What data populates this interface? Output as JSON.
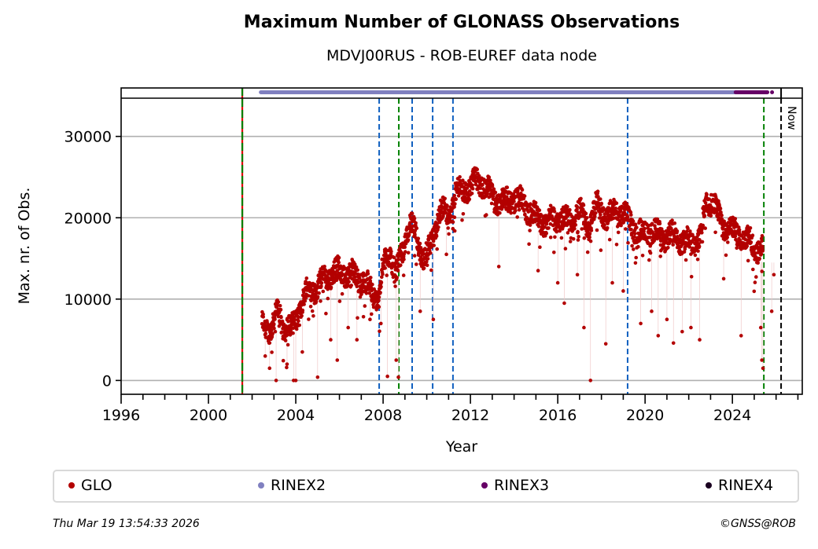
{
  "header": {
    "title": "Maximum Number of GLONASS Observations",
    "subtitle": "MDVJ00RUS - ROB-EUREF data node"
  },
  "footer": {
    "timestamp": "Thu Mar 19 13:54:33 2026",
    "copyright": "©GNSS@ROB"
  },
  "chart_data": {
    "type": "scatter",
    "title": "Maximum Number of GLONASS Observations",
    "subtitle": "MDVJ00RUS - ROB-EUREF data node",
    "xlabel": "Year",
    "ylabel": "Max. nr. of Obs.",
    "xlim": [
      1996,
      2027.2
    ],
    "ylim": [
      -1700,
      34700
    ],
    "xticks": [
      1996,
      2000,
      2004,
      2008,
      2012,
      2016,
      2020,
      2024
    ],
    "xtick_labels": [
      "1996",
      "2000",
      "2004",
      "2008",
      "2012",
      "2016",
      "2020",
      "2024"
    ],
    "yticks": [
      0,
      10000,
      20000,
      30000
    ],
    "ytick_labels": [
      "0",
      "10000",
      "20000",
      "30000"
    ],
    "grid": "horizontal",
    "legend_position": "bottom",
    "legend": [
      {
        "label": "GLO",
        "color": "#b30000"
      },
      {
        "label": "RINEX2",
        "color": "#8080c0"
      },
      {
        "label": "RINEX3",
        "color": "#660066"
      },
      {
        "label": "RINEX4",
        "color": "#1a0020"
      }
    ],
    "series": [
      {
        "name": "GLO",
        "color": "#b30000",
        "trend": [
          [
            2002.45,
            6800
          ],
          [
            2002.9,
            6500
          ],
          [
            2003.2,
            8500
          ],
          [
            2003.4,
            7000
          ],
          [
            2003.8,
            6200
          ],
          [
            2004.2,
            9000
          ],
          [
            2004.5,
            11000
          ],
          [
            2005.0,
            11500
          ],
          [
            2005.5,
            13000
          ],
          [
            2006.0,
            13500
          ],
          [
            2006.5,
            13000
          ],
          [
            2007.0,
            12500
          ],
          [
            2007.5,
            11000
          ],
          [
            2007.8,
            10000
          ],
          [
            2008.0,
            14000
          ],
          [
            2008.3,
            16000
          ],
          [
            2008.6,
            13000
          ],
          [
            2008.9,
            16000
          ],
          [
            2009.2,
            19500
          ],
          [
            2009.6,
            17000
          ],
          [
            2009.9,
            15000
          ],
          [
            2010.2,
            16500
          ],
          [
            2010.6,
            21000
          ],
          [
            2011.0,
            20000
          ],
          [
            2011.3,
            23000
          ],
          [
            2012.0,
            24000
          ],
          [
            2012.5,
            24500
          ],
          [
            2013.0,
            22500
          ],
          [
            2013.5,
            22000
          ],
          [
            2014.0,
            22500
          ],
          [
            2014.5,
            21500
          ],
          [
            2015.0,
            20000
          ],
          [
            2015.5,
            19500
          ],
          [
            2016.0,
            20000
          ],
          [
            2016.5,
            19500
          ],
          [
            2017.0,
            21000
          ],
          [
            2017.4,
            19000
          ],
          [
            2017.8,
            21500
          ],
          [
            2018.3,
            20000
          ],
          [
            2018.8,
            21000
          ],
          [
            2019.3,
            19500
          ],
          [
            2019.8,
            18000
          ],
          [
            2020.3,
            18500
          ],
          [
            2020.8,
            17500
          ],
          [
            2021.2,
            18000
          ],
          [
            2021.6,
            17500
          ],
          [
            2022.0,
            17000
          ],
          [
            2022.5,
            17500
          ],
          [
            2022.8,
            21500
          ],
          [
            2023.1,
            22500
          ],
          [
            2023.5,
            19000
          ],
          [
            2024.0,
            18500
          ],
          [
            2024.5,
            17500
          ],
          [
            2025.0,
            16500
          ],
          [
            2025.4,
            16000
          ]
        ],
        "outliers": [
          [
            2002.6,
            3000
          ],
          [
            2002.8,
            1500
          ],
          [
            2003.1,
            0
          ],
          [
            2003.6,
            2000
          ],
          [
            2003.9,
            0
          ],
          [
            2004.0,
            0
          ],
          [
            2004.3,
            3500
          ],
          [
            2005.0,
            400
          ],
          [
            2005.6,
            5000
          ],
          [
            2005.9,
            2500
          ],
          [
            2006.4,
            6500
          ],
          [
            2006.8,
            5000
          ],
          [
            2007.4,
            7500
          ],
          [
            2007.9,
            7000
          ],
          [
            2008.2,
            500
          ],
          [
            2008.6,
            2500
          ],
          [
            2008.7,
            400
          ],
          [
            2009.7,
            8500
          ],
          [
            2010.3,
            7500
          ],
          [
            2010.9,
            15500
          ],
          [
            2013.3,
            14000
          ],
          [
            2015.1,
            13500
          ],
          [
            2016.0,
            12000
          ],
          [
            2016.3,
            9500
          ],
          [
            2016.9,
            13000
          ],
          [
            2017.2,
            6500
          ],
          [
            2017.5,
            0
          ],
          [
            2018.2,
            4500
          ],
          [
            2018.5,
            12000
          ],
          [
            2019.0,
            11000
          ],
          [
            2019.8,
            7000
          ],
          [
            2020.3,
            8500
          ],
          [
            2020.6,
            5500
          ],
          [
            2021.0,
            7500
          ],
          [
            2021.3,
            4600
          ],
          [
            2021.7,
            6000
          ],
          [
            2022.1,
            6500
          ],
          [
            2022.5,
            5000
          ],
          [
            2023.6,
            12500
          ],
          [
            2024.4,
            5500
          ],
          [
            2025.3,
            6500
          ],
          [
            2025.35,
            2500
          ],
          [
            2025.4,
            1500
          ],
          [
            2025.8,
            8500
          ],
          [
            2025.9,
            13000
          ]
        ]
      }
    ],
    "reference_lines": [
      {
        "x": 2001.55,
        "style": "red-green dashed"
      },
      {
        "x": 2007.82,
        "color": "#1060c0"
      },
      {
        "x": 2008.72,
        "color": "#008000"
      },
      {
        "x": 2009.33,
        "color": "#1060c0"
      },
      {
        "x": 2010.27,
        "color": "#1060c0"
      },
      {
        "x": 2011.2,
        "color": "#1060c0"
      },
      {
        "x": 2019.2,
        "color": "#1060c0"
      },
      {
        "x": 2025.44,
        "color": "#008000"
      },
      {
        "x": 2026.23,
        "color": "#000000",
        "label": "Now"
      }
    ],
    "format_bars": [
      {
        "name": "RINEX2",
        "color": "#8080c0",
        "start": 2002.4,
        "end": 2024.7
      },
      {
        "name": "RINEX3",
        "color": "#660066",
        "start": 2024.15,
        "end": 2025.6
      }
    ]
  }
}
